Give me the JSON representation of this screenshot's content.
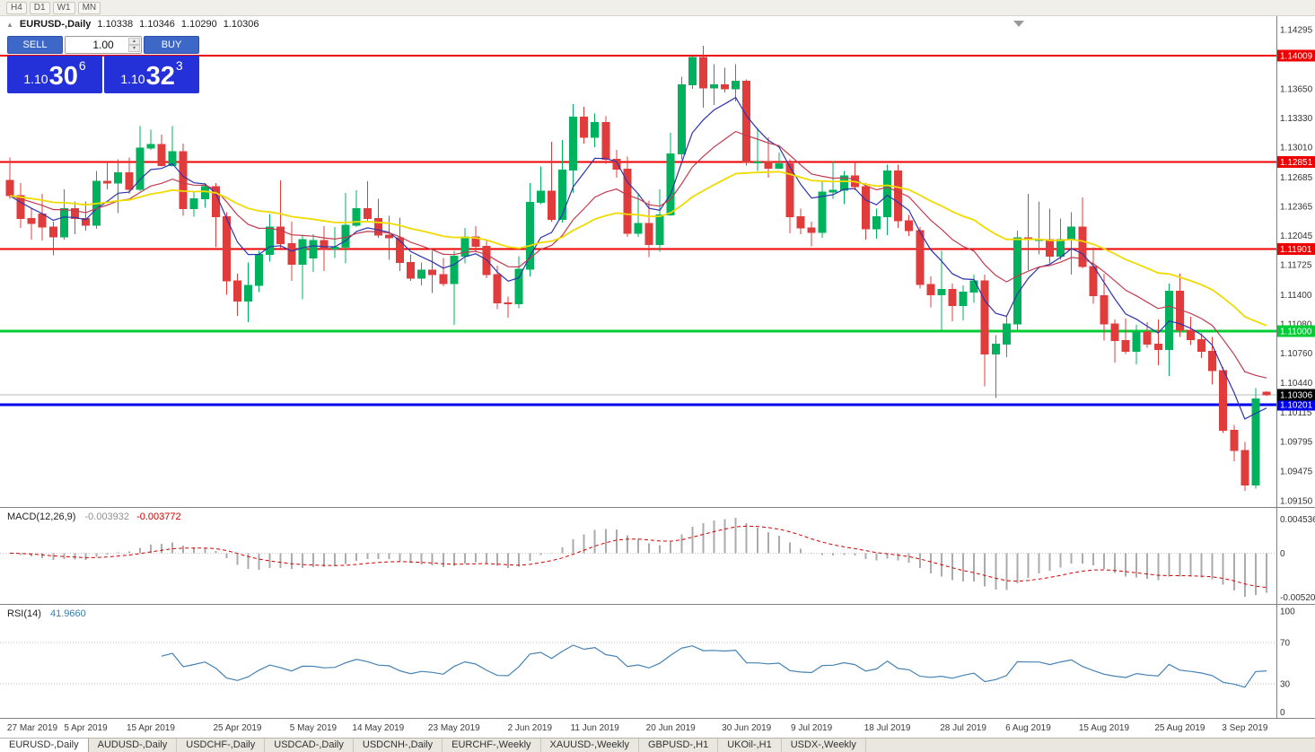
{
  "toolbar": {
    "periods": [
      "H4",
      "D1",
      "W1",
      "MN"
    ]
  },
  "header": {
    "symbol": "EURUSD-,Daily",
    "open": "1.10338",
    "high": "1.10346",
    "low": "1.10290",
    "close": "1.10306"
  },
  "trade_panel": {
    "sell_label": "SELL",
    "buy_label": "BUY",
    "volume": "1.00",
    "sell_price": {
      "prefix": "1.10",
      "main": "30",
      "sup": "6"
    },
    "buy_price": {
      "prefix": "1.10",
      "main": "32",
      "sup": "3"
    }
  },
  "indicators": {
    "macd_label": {
      "name": "MACD(12,26,9)",
      "main": "-0.003932",
      "signal": "-0.003772"
    },
    "rsi_label": {
      "name": "RSI(14)",
      "value": "41.9660"
    }
  },
  "colors": {
    "bull": "#00B25D",
    "bear": "#E03C3C",
    "background": "#FFFFFF",
    "axis_text": "#333333",
    "panel_border": "#808080"
  },
  "chart_data": {
    "type": "candlestick",
    "symbol": "EURUSD-",
    "timeframe": "Daily",
    "price_scale": {
      "top": 1.14295,
      "bottom": 1.0915
    },
    "axis_ticks": [
      "1.14295",
      "1.13650",
      "1.13330",
      "1.13010",
      "1.12685",
      "1.12365",
      "1.12045",
      "1.11725",
      "1.11400",
      "1.11080",
      "1.10760",
      "1.10440",
      "1.10115",
      "1.09795",
      "1.09475",
      "1.09150"
    ],
    "hlines": [
      {
        "price": 1.14009,
        "label": "1.14009",
        "color": "#EE0000",
        "width": 2
      },
      {
        "price": 1.12851,
        "label": "1.12851",
        "color": "#EE0000",
        "width": 2
      },
      {
        "price": 1.11901,
        "label": "1.11901",
        "color": "#EE0000",
        "width": 2
      },
      {
        "price": 1.11,
        "label": "1.11000",
        "color": "#00CC33",
        "width": 3
      },
      {
        "price": 1.10201,
        "label": "1.10201",
        "color": "#0000EE",
        "width": 3
      }
    ],
    "bid_line": {
      "price": 1.10306,
      "label": "1.10306",
      "color": "#BBBBBB",
      "label_bg": "#000000"
    },
    "moving_averages": [
      {
        "period": 6,
        "color": "#2E34B0",
        "width": 1.2
      },
      {
        "period": 14,
        "color": "#C13B4E",
        "width": 1.2
      },
      {
        "period": 34,
        "color": "#EFDB00",
        "width": 1.8
      }
    ],
    "macd": {
      "fast": 12,
      "slow": 26,
      "signal": 9,
      "hist_color": "#ABABAB",
      "signal_color": "#D00000",
      "axis_max": "0.004536",
      "axis_zero": "0",
      "axis_min": "-0.005205"
    },
    "rsi": {
      "period": 14,
      "color": "#4682B4",
      "levels": [
        "100",
        "70",
        "30",
        "0"
      ]
    },
    "date_ticks": [
      {
        "label": "27 Mar 2019",
        "i": 0
      },
      {
        "label": "5 Apr 2019",
        "i": 7
      },
      {
        "label": "15 Apr 2019",
        "i": 13
      },
      {
        "label": "25 Apr 2019",
        "i": 21
      },
      {
        "label": "5 May 2019",
        "i": 28
      },
      {
        "label": "14 May 2019",
        "i": 34
      },
      {
        "label": "23 May 2019",
        "i": 41
      },
      {
        "label": "2 Jun 2019",
        "i": 48
      },
      {
        "label": "11 Jun 2019",
        "i": 54
      },
      {
        "label": "20 Jun 2019",
        "i": 61
      },
      {
        "label": "30 Jun 2019",
        "i": 68
      },
      {
        "label": "9 Jul 2019",
        "i": 74
      },
      {
        "label": "18 Jul 2019",
        "i": 81
      },
      {
        "label": "28 Jul 2019",
        "i": 88
      },
      {
        "label": "6 Aug 2019",
        "i": 94
      },
      {
        "label": "15 Aug 2019",
        "i": 101
      },
      {
        "label": "25 Aug 2019",
        "i": 108
      },
      {
        "label": "3 Sep 2019",
        "i": 114
      }
    ],
    "candles": [
      [
        1.1265,
        1.129,
        1.1245,
        1.1248
      ],
      [
        1.1248,
        1.1262,
        1.1213,
        1.1223
      ],
      [
        1.1223,
        1.1235,
        1.12,
        1.1218
      ],
      [
        1.1228,
        1.125,
        1.1199,
        1.1214
      ],
      [
        1.1214,
        1.122,
        1.1183,
        1.1203
      ],
      [
        1.1203,
        1.1255,
        1.12,
        1.1234
      ],
      [
        1.1234,
        1.1242,
        1.1206,
        1.1223
      ],
      [
        1.1223,
        1.1242,
        1.121,
        1.1216
      ],
      [
        1.1216,
        1.1275,
        1.1212,
        1.1264
      ],
      [
        1.1264,
        1.1285,
        1.1255,
        1.1262
      ],
      [
        1.1262,
        1.1288,
        1.1229,
        1.1273
      ],
      [
        1.1273,
        1.129,
        1.125,
        1.1255
      ],
      [
        1.1255,
        1.1324,
        1.1253,
        1.13
      ],
      [
        1.13,
        1.132,
        1.1298,
        1.1304
      ],
      [
        1.1304,
        1.1315,
        1.128,
        1.1281
      ],
      [
        1.1281,
        1.1324,
        1.128,
        1.1296
      ],
      [
        1.1296,
        1.1305,
        1.1226,
        1.1234
      ],
      [
        1.1234,
        1.1252,
        1.1225,
        1.1245
      ],
      [
        1.1245,
        1.1262,
        1.1235,
        1.1258
      ],
      [
        1.1258,
        1.1262,
        1.1192,
        1.1225
      ],
      [
        1.1225,
        1.123,
        1.114,
        1.1155
      ],
      [
        1.1155,
        1.1163,
        1.1117,
        1.1133
      ],
      [
        1.1133,
        1.1175,
        1.111,
        1.115
      ],
      [
        1.115,
        1.1188,
        1.1143,
        1.1184
      ],
      [
        1.1184,
        1.1228,
        1.1176,
        1.1214
      ],
      [
        1.1214,
        1.1265,
        1.119,
        1.1196
      ],
      [
        1.1196,
        1.122,
        1.1155,
        1.1173
      ],
      [
        1.1173,
        1.1205,
        1.1135,
        1.12
      ],
      [
        1.118,
        1.1206,
        1.1165,
        1.1199
      ],
      [
        1.1199,
        1.1215,
        1.1166,
        1.119
      ],
      [
        1.119,
        1.1214,
        1.118,
        1.1192
      ],
      [
        1.1192,
        1.1251,
        1.1174,
        1.1216
      ],
      [
        1.1216,
        1.1254,
        1.1214,
        1.1234
      ],
      [
        1.1234,
        1.1264,
        1.1221,
        1.1223
      ],
      [
        1.1223,
        1.1245,
        1.1202,
        1.1205
      ],
      [
        1.1205,
        1.1226,
        1.1178,
        1.1202
      ],
      [
        1.1202,
        1.1224,
        1.1166,
        1.1175
      ],
      [
        1.1175,
        1.1184,
        1.1155,
        1.1158
      ],
      [
        1.1158,
        1.1175,
        1.115,
        1.1167
      ],
      [
        1.1167,
        1.1188,
        1.1142,
        1.1162
      ],
      [
        1.1162,
        1.118,
        1.1149,
        1.1152
      ],
      [
        1.1152,
        1.1188,
        1.1107,
        1.1182
      ],
      [
        1.1182,
        1.1213,
        1.1174,
        1.1203
      ],
      [
        1.1203,
        1.1215,
        1.1187,
        1.1193
      ],
      [
        1.1193,
        1.12,
        1.1158,
        1.1162
      ],
      [
        1.1162,
        1.1172,
        1.1124,
        1.1131
      ],
      [
        1.1131,
        1.1138,
        1.1115,
        1.113
      ],
      [
        1.113,
        1.1182,
        1.1125,
        1.1168
      ],
      [
        1.1168,
        1.1262,
        1.116,
        1.1241
      ],
      [
        1.1241,
        1.128,
        1.1239,
        1.1253
      ],
      [
        1.1253,
        1.1307,
        1.122,
        1.1222
      ],
      [
        1.1222,
        1.1309,
        1.1219,
        1.1276
      ],
      [
        1.1276,
        1.1348,
        1.1251,
        1.1334
      ],
      [
        1.1334,
        1.1345,
        1.1305,
        1.1312
      ],
      [
        1.1312,
        1.1338,
        1.1301,
        1.1328
      ],
      [
        1.1328,
        1.1335,
        1.1283,
        1.1288
      ],
      [
        1.1288,
        1.1298,
        1.1268,
        1.1277
      ],
      [
        1.1277,
        1.1291,
        1.1203,
        1.1207
      ],
      [
        1.1207,
        1.125,
        1.1203,
        1.1218
      ],
      [
        1.1218,
        1.1243,
        1.1181,
        1.1195
      ],
      [
        1.1195,
        1.1255,
        1.1187,
        1.1227
      ],
      [
        1.1227,
        1.1317,
        1.1226,
        1.1294
      ],
      [
        1.1294,
        1.1378,
        1.1288,
        1.1369
      ],
      [
        1.1369,
        1.1401,
        1.1365,
        1.1399
      ],
      [
        1.1399,
        1.1412,
        1.1344,
        1.1366
      ],
      [
        1.1366,
        1.1392,
        1.1347,
        1.1369
      ],
      [
        1.1369,
        1.1388,
        1.1361,
        1.1365
      ],
      [
        1.1365,
        1.1392,
        1.1351,
        1.1373
      ],
      [
        1.1373,
        1.1375,
        1.1281,
        1.1285
      ],
      [
        1.1285,
        1.1322,
        1.1275,
        1.1285
      ],
      [
        1.1285,
        1.1312,
        1.1268,
        1.1278
      ],
      [
        1.1278,
        1.1295,
        1.1277,
        1.1283
      ],
      [
        1.1283,
        1.1288,
        1.1207,
        1.1225
      ],
      [
        1.1225,
        1.1234,
        1.1206,
        1.1213
      ],
      [
        1.1213,
        1.122,
        1.1193,
        1.1208
      ],
      [
        1.1208,
        1.1264,
        1.1202,
        1.1252
      ],
      [
        1.1252,
        1.1286,
        1.1245,
        1.1254
      ],
      [
        1.1254,
        1.1275,
        1.1239,
        1.127
      ],
      [
        1.127,
        1.1285,
        1.1254,
        1.1258
      ],
      [
        1.1258,
        1.1262,
        1.12,
        1.1212
      ],
      [
        1.1212,
        1.1234,
        1.1201,
        1.1225
      ],
      [
        1.1225,
        1.1282,
        1.1205,
        1.1275
      ],
      [
        1.1275,
        1.1282,
        1.1213,
        1.1221
      ],
      [
        1.1221,
        1.1227,
        1.1204,
        1.121
      ],
      [
        1.121,
        1.1214,
        1.1147,
        1.1151
      ],
      [
        1.1151,
        1.116,
        1.1126,
        1.114
      ],
      [
        1.114,
        1.1188,
        1.1101,
        1.1146
      ],
      [
        1.1146,
        1.1152,
        1.1111,
        1.1128
      ],
      [
        1.1128,
        1.115,
        1.1112,
        1.1143
      ],
      [
        1.1143,
        1.1162,
        1.1131,
        1.1155
      ],
      [
        1.1155,
        1.1162,
        1.104,
        1.1075
      ],
      [
        1.1075,
        1.1096,
        1.1027,
        1.1086
      ],
      [
        1.1086,
        1.1116,
        1.1072,
        1.1108
      ],
      [
        1.1108,
        1.121,
        1.1101,
        1.1202
      ],
      [
        1.1202,
        1.125,
        1.1167,
        1.12
      ],
      [
        1.12,
        1.1242,
        1.1184,
        1.12
      ],
      [
        1.12,
        1.1234,
        1.1174,
        1.1182
      ],
      [
        1.1182,
        1.1223,
        1.1178,
        1.12
      ],
      [
        1.12,
        1.123,
        1.1162,
        1.1214
      ],
      [
        1.1214,
        1.1246,
        1.1169,
        1.1171
      ],
      [
        1.1171,
        1.1192,
        1.113,
        1.1139
      ],
      [
        1.1139,
        1.1163,
        1.109,
        1.1108
      ],
      [
        1.1108,
        1.1113,
        1.1066,
        1.109
      ],
      [
        1.109,
        1.1114,
        1.1075,
        1.1078
      ],
      [
        1.1078,
        1.1107,
        1.1064,
        1.1099
      ],
      [
        1.1099,
        1.111,
        1.1082,
        1.1086
      ],
      [
        1.1086,
        1.1113,
        1.1063,
        1.108
      ],
      [
        1.108,
        1.1152,
        1.1051,
        1.1144
      ],
      [
        1.1144,
        1.1163,
        1.1094,
        1.1101
      ],
      [
        1.1101,
        1.1116,
        1.1085,
        1.1091
      ],
      [
        1.1091,
        1.1098,
        1.1071,
        1.1078
      ],
      [
        1.1078,
        1.1094,
        1.1042,
        1.1057
      ],
      [
        1.1057,
        1.1061,
        1.0989,
        1.0992
      ],
      [
        1.0992,
        1.0998,
        1.0958,
        1.097
      ],
      [
        1.097,
        1.0979,
        1.0926,
        1.0932
      ],
      [
        1.0932,
        1.1038,
        1.0928,
        1.1026
      ],
      [
        1.10338,
        1.10346,
        1.1029,
        1.10306
      ]
    ]
  },
  "tabs": {
    "active_index": 0,
    "items": [
      "EURUSD-,Daily",
      "AUDUSD-,Daily",
      "USDCHF-,Daily",
      "USDCAD-,Daily",
      "USDCNH-,Daily",
      "EURCHF-,Weekly",
      "XAUUSD-,Weekly",
      "GBPUSD-,H1",
      "UKOil-,H1",
      "USDX-,Weekly"
    ]
  }
}
